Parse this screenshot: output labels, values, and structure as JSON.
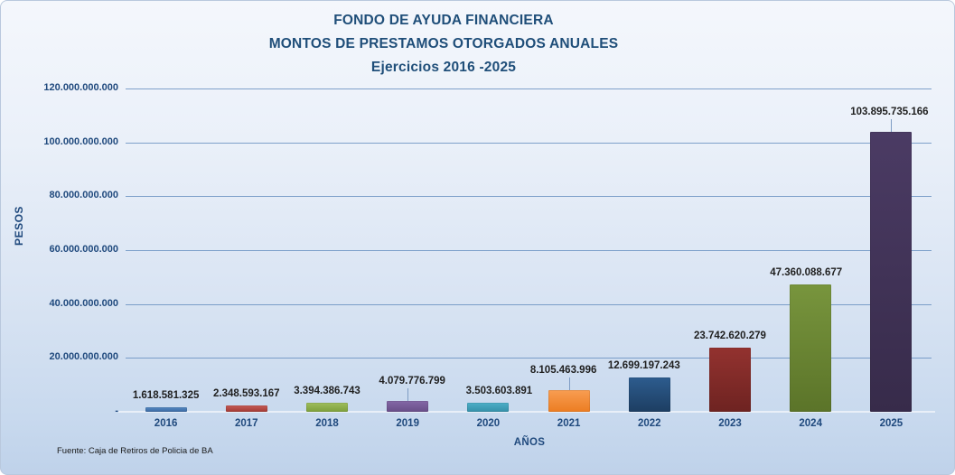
{
  "chart_data": {
    "type": "bar",
    "title_lines": [
      "FONDO DE AYUDA FINANCIERA",
      "MONTOS DE PRESTAMOS OTORGADOS  ANUALES",
      "Ejercicios  2016 -2025"
    ],
    "ylabel": "PESOS",
    "xlabel": "AÑOS",
    "source": "Fuente: Caja de Retiros de Policia de BA",
    "ylim": [
      0,
      120000000000
    ],
    "grid": true,
    "legend": "none",
    "yticks": [
      {
        "value": 120000000000,
        "label": "120.000.000.000"
      },
      {
        "value": 100000000000,
        "label": "100.000.000.000"
      },
      {
        "value": 80000000000,
        "label": "80.000.000.000"
      },
      {
        "value": 60000000000,
        "label": "60.000.000.000"
      },
      {
        "value": 40000000000,
        "label": "40.000.000.000"
      },
      {
        "value": 20000000000,
        "label": "20.000.000.000"
      },
      {
        "value": 0,
        "label": "-"
      }
    ],
    "categories": [
      "2016",
      "2017",
      "2018",
      "2019",
      "2020",
      "2021",
      "2022",
      "2023",
      "2024",
      "2025"
    ],
    "values": [
      1618581325,
      2348593167,
      3394386743,
      4079776799,
      3503603891,
      8105463996,
      12699197243,
      23742620279,
      47360088677,
      103895735166
    ],
    "value_labels": [
      "1.618.581.325",
      "2.348.593.167",
      "3.394.386.743",
      "4.079.776.799",
      "3.503.603.891",
      "8.105.463.996",
      "12.699.197.243",
      "23.742.620.279",
      "47.360.088.677",
      "103.895.735.166"
    ],
    "has_leader": [
      false,
      false,
      false,
      true,
      false,
      true,
      false,
      false,
      false,
      true
    ],
    "bar_colors": [
      {
        "top": "#5488c0",
        "bottom": "#3c6aa4"
      },
      {
        "top": "#c65b55",
        "bottom": "#a23a35"
      },
      {
        "top": "#9fbd5c",
        "bottom": "#7da03b"
      },
      {
        "top": "#8468a6",
        "bottom": "#684e88"
      },
      {
        "top": "#4daec8",
        "bottom": "#3590a9"
      },
      {
        "top": "#f89d52",
        "bottom": "#ec7d22"
      },
      {
        "top": "#2d5c8e",
        "bottom": "#1d3e62"
      },
      {
        "top": "#93322f",
        "bottom": "#6e2321"
      },
      {
        "top": "#78953d",
        "bottom": "#5b7429"
      },
      {
        "top": "#4b3b64",
        "bottom": "#372b4a"
      }
    ],
    "colors": {
      "title": "#1f4e79",
      "axis_text": "#1f497d",
      "gridline": "#6b92c1",
      "data_label": "#1f1f1f"
    }
  }
}
